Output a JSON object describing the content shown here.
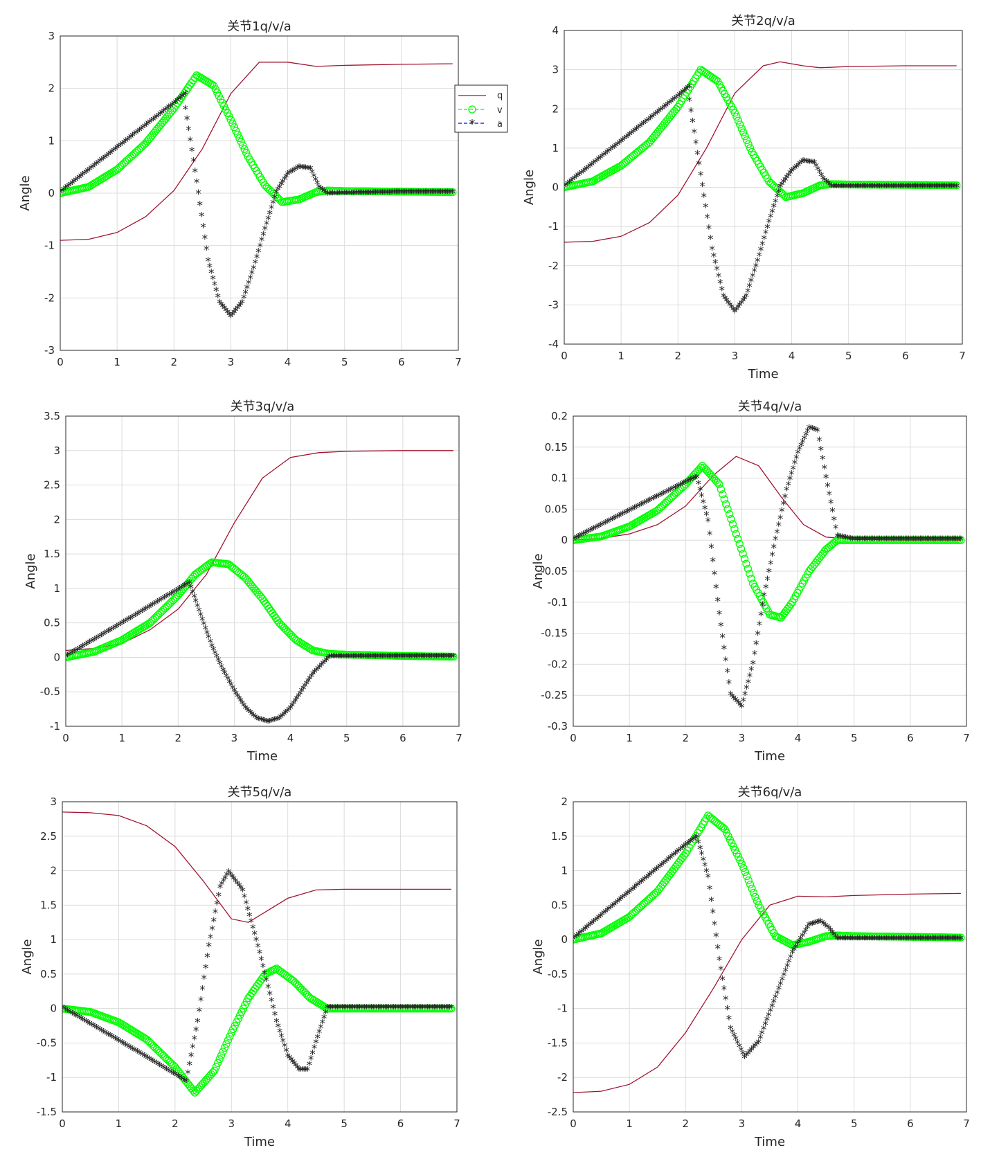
{
  "figure": {
    "colors": {
      "q": "#a2142f",
      "v": "#00ff00",
      "a": "#0000ff",
      "grid": "#dcdcdc",
      "axes": "#262626"
    },
    "legend": {
      "entries": [
        "q",
        "v",
        "a"
      ],
      "placement": "right-of-top-left-plot"
    }
  },
  "chart_data": [
    {
      "type": "line",
      "title": "关节1q/v/a",
      "xlabel": "",
      "ylabel": "Angle",
      "xlim": [
        0,
        7
      ],
      "ylim": [
        -3,
        3
      ],
      "xticks": [
        "0",
        "1",
        "2",
        "3",
        "4",
        "5",
        "6",
        "7"
      ],
      "yticks": [
        "-3",
        "-2",
        "-1",
        "0",
        "1",
        "2",
        "3"
      ],
      "grid": true,
      "legend": true,
      "series": [
        {
          "name": "q",
          "marker": "none",
          "x": [
            0,
            0.5,
            1,
            1.5,
            2,
            2.5,
            3,
            3.5,
            4,
            4.5,
            5,
            6,
            6.9
          ],
          "y": [
            -0.9,
            -0.88,
            -0.75,
            -0.45,
            0.05,
            0.85,
            1.9,
            2.5,
            2.5,
            2.42,
            2.44,
            2.46,
            2.47
          ]
        },
        {
          "name": "v",
          "marker": "o",
          "x": [
            0,
            0.5,
            1,
            1.5,
            2,
            2.4,
            2.7,
            3,
            3.3,
            3.6,
            3.9,
            4.2,
            4.5,
            4.7,
            5,
            6,
            6.9
          ],
          "y": [
            0,
            0.12,
            0.45,
            0.95,
            1.62,
            2.25,
            2.05,
            1.4,
            0.7,
            0.15,
            -0.17,
            -0.12,
            0.02,
            0.05,
            0.04,
            0.03,
            0.02
          ]
        },
        {
          "name": "a",
          "marker": "*",
          "x": [
            0,
            1,
            2,
            2.2,
            2.2,
            2.4,
            2.6,
            2.8,
            3,
            3.2,
            3.4,
            3.6,
            3.8,
            4,
            4.2,
            4.4,
            4.55,
            4.7,
            5,
            6,
            6.9
          ],
          "y": [
            0,
            0.85,
            1.7,
            1.88,
            1.6,
            0.2,
            -1.3,
            -2.1,
            -2.37,
            -2.1,
            -1.45,
            -0.7,
            0,
            0.35,
            0.48,
            0.45,
            0.1,
            -0.03,
            -0.02,
            0,
            0
          ]
        }
      ]
    },
    {
      "type": "line",
      "title": "关节2q/v/a",
      "xlabel": "Time",
      "ylabel": "Angle",
      "xlim": [
        0,
        7
      ],
      "ylim": [
        -4,
        4
      ],
      "xticks": [
        "0",
        "1",
        "2",
        "3",
        "4",
        "5",
        "6",
        "7"
      ],
      "yticks": [
        "-4",
        "-3",
        "-2",
        "-1",
        "0",
        "1",
        "2",
        "3",
        "4"
      ],
      "grid": true,
      "legend": false,
      "series": [
        {
          "name": "q",
          "marker": "none",
          "x": [
            0,
            0.5,
            1,
            1.5,
            2,
            2.5,
            3,
            3.5,
            3.8,
            4.2,
            4.5,
            5,
            6,
            6.9
          ],
          "y": [
            -1.4,
            -1.38,
            -1.25,
            -0.9,
            -0.2,
            1,
            2.4,
            3.1,
            3.2,
            3.1,
            3.05,
            3.08,
            3.1,
            3.1
          ]
        },
        {
          "name": "v",
          "marker": "o",
          "x": [
            0,
            0.5,
            1,
            1.5,
            2,
            2.4,
            2.7,
            3,
            3.3,
            3.6,
            3.9,
            4.2,
            4.5,
            4.7,
            5,
            6,
            6.9
          ],
          "y": [
            0,
            0.15,
            0.55,
            1.15,
            2.05,
            3,
            2.7,
            1.9,
            0.9,
            0.15,
            -0.25,
            -0.15,
            0.05,
            0.08,
            0.07,
            0.06,
            0.05
          ]
        },
        {
          "name": "a",
          "marker": "*",
          "x": [
            0,
            1,
            2,
            2.2,
            2.2,
            2.4,
            2.6,
            2.8,
            3,
            3.2,
            3.4,
            3.6,
            3.8,
            4,
            4.2,
            4.4,
            4.55,
            4.7,
            5,
            6,
            6.9
          ],
          "y": [
            0,
            1.15,
            2.3,
            2.55,
            2.2,
            0.3,
            -1.6,
            -2.8,
            -3.2,
            -2.8,
            -1.9,
            -0.9,
            0,
            0.4,
            0.65,
            0.6,
            0.2,
            0,
            0,
            0,
            0
          ]
        }
      ]
    },
    {
      "type": "line",
      "title": "关节3q/v/a",
      "xlabel": "Time",
      "ylabel": "Angle",
      "xlim": [
        0,
        7
      ],
      "ylim": [
        -1,
        3.5
      ],
      "xticks": [
        "0",
        "1",
        "2",
        "3",
        "4",
        "5",
        "6",
        "7"
      ],
      "yticks": [
        "-1",
        "-0.5",
        "0",
        "0.5",
        "1",
        "1.5",
        "2",
        "2.5",
        "3",
        "3.5"
      ],
      "grid": true,
      "legend": false,
      "series": [
        {
          "name": "q",
          "marker": "none",
          "x": [
            0,
            0.5,
            1,
            1.5,
            2,
            2.5,
            3,
            3.5,
            4,
            4.5,
            5,
            6,
            6.9
          ],
          "y": [
            0.1,
            0.13,
            0.2,
            0.4,
            0.7,
            1.2,
            1.95,
            2.6,
            2.9,
            2.97,
            2.99,
            3,
            3
          ]
        },
        {
          "name": "v",
          "marker": "o",
          "x": [
            0,
            0.5,
            1,
            1.5,
            2,
            2.3,
            2.6,
            2.9,
            3.2,
            3.5,
            3.8,
            4.1,
            4.4,
            4.7,
            5,
            6,
            6.9
          ],
          "y": [
            0,
            0.08,
            0.25,
            0.5,
            0.9,
            1.2,
            1.38,
            1.35,
            1.15,
            0.85,
            0.5,
            0.25,
            0.1,
            0.05,
            0.04,
            0.02,
            0.01
          ]
        },
        {
          "name": "a",
          "marker": "*",
          "x": [
            0,
            1,
            2,
            2.2,
            2.4,
            2.6,
            2.8,
            3,
            3.2,
            3.4,
            3.6,
            3.8,
            4,
            4.2,
            4.4,
            4.7,
            5,
            6,
            6.9
          ],
          "y": [
            0,
            0.48,
            0.97,
            1.07,
            0.6,
            0.15,
            -0.2,
            -0.5,
            -0.75,
            -0.9,
            -0.95,
            -0.9,
            -0.75,
            -0.5,
            -0.25,
            0,
            0,
            0,
            0
          ]
        }
      ]
    },
    {
      "type": "line",
      "title": "关节4q/v/a",
      "xlabel": "Time",
      "ylabel": "Angle",
      "xlim": [
        0,
        7
      ],
      "ylim": [
        -0.3,
        0.2
      ],
      "xticks": [
        "0",
        "1",
        "2",
        "3",
        "4",
        "5",
        "6",
        "7"
      ],
      "yticks": [
        "-0.3",
        "-0.25",
        "-0.2",
        "-0.15",
        "-0.1",
        "-0.05",
        "0",
        "0.05",
        "0.1",
        "0.15",
        "0.2"
      ],
      "grid": true,
      "legend": false,
      "series": [
        {
          "name": "q",
          "marker": "none",
          "x": [
            0,
            0.5,
            1,
            1.5,
            2,
            2.5,
            2.9,
            3.3,
            3.7,
            4.1,
            4.5,
            5,
            6,
            6.9
          ],
          "y": [
            0,
            0.003,
            0.01,
            0.025,
            0.055,
            0.105,
            0.135,
            0.12,
            0.07,
            0.025,
            0.005,
            0.001,
            0,
            0
          ]
        },
        {
          "name": "v",
          "marker": "o",
          "x": [
            0,
            0.5,
            1,
            1.5,
            2,
            2.3,
            2.6,
            2.9,
            3.2,
            3.5,
            3.7,
            3.9,
            4.2,
            4.5,
            4.7,
            5,
            6,
            6.9
          ],
          "y": [
            0,
            0.006,
            0.022,
            0.048,
            0.09,
            0.12,
            0.09,
            0.01,
            -0.07,
            -0.12,
            -0.125,
            -0.1,
            -0.05,
            -0.015,
            0,
            0,
            0,
            0
          ]
        },
        {
          "name": "a",
          "marker": "*",
          "x": [
            0,
            1,
            2,
            2.2,
            2.4,
            2.6,
            2.8,
            3,
            3.2,
            3.4,
            3.6,
            3.8,
            4,
            4.2,
            4.35,
            4.5,
            4.7,
            5,
            6,
            6.9
          ],
          "y": [
            0,
            0.046,
            0.092,
            0.1,
            0.03,
            -0.12,
            -0.25,
            -0.27,
            -0.2,
            -0.09,
            0,
            0.08,
            0.14,
            0.18,
            0.175,
            0.1,
            0.005,
            0,
            0,
            0
          ]
        }
      ]
    },
    {
      "type": "line",
      "title": "关节5q/v/a",
      "xlabel": "Time",
      "ylabel": "Angle",
      "xlim": [
        0,
        7
      ],
      "ylim": [
        -1.5,
        3
      ],
      "xticks": [
        "0",
        "1",
        "2",
        "3",
        "4",
        "5",
        "6",
        "7"
      ],
      "yticks": [
        "-1.5",
        "-1",
        "-0.5",
        "0",
        "0.5",
        "1",
        "1.5",
        "2",
        "2.5",
        "3"
      ],
      "grid": true,
      "legend": false,
      "series": [
        {
          "name": "q",
          "marker": "none",
          "x": [
            0,
            0.5,
            1,
            1.5,
            2,
            2.5,
            3,
            3.3,
            3.6,
            4,
            4.5,
            5,
            6,
            6.9
          ],
          "y": [
            2.85,
            2.84,
            2.8,
            2.65,
            2.35,
            1.85,
            1.3,
            1.25,
            1.4,
            1.6,
            1.72,
            1.73,
            1.73,
            1.73
          ]
        },
        {
          "name": "v",
          "marker": "o",
          "x": [
            0,
            0.5,
            1,
            1.5,
            2,
            2.35,
            2.7,
            3,
            3.3,
            3.6,
            3.8,
            4.1,
            4.4,
            4.7,
            5,
            6,
            6.9
          ],
          "y": [
            0,
            -0.05,
            -0.2,
            -0.45,
            -0.85,
            -1.22,
            -0.9,
            -0.35,
            0.15,
            0.5,
            0.58,
            0.4,
            0.15,
            0,
            0,
            0,
            0
          ]
        },
        {
          "name": "a",
          "marker": "*",
          "x": [
            0,
            1,
            2,
            2.2,
            2.4,
            2.6,
            2.8,
            2.95,
            3.2,
            3.5,
            3.8,
            4,
            4.2,
            4.35,
            4.5,
            4.7,
            5,
            6,
            6.9
          ],
          "y": [
            0,
            -0.48,
            -0.97,
            -1.07,
            -0.2,
            0.9,
            1.75,
            1.97,
            1.7,
            0.8,
            -0.2,
            -0.7,
            -0.9,
            -0.9,
            -0.5,
            0,
            0,
            0,
            0
          ]
        }
      ]
    },
    {
      "type": "line",
      "title": "关节6q/v/a",
      "xlabel": "Time",
      "ylabel": "Angle",
      "xlim": [
        0,
        7
      ],
      "ylim": [
        -2.5,
        2
      ],
      "xticks": [
        "0",
        "1",
        "2",
        "3",
        "4",
        "5",
        "6",
        "7"
      ],
      "yticks": [
        "-2.5",
        "-2",
        "-1.5",
        "-1",
        "-0.5",
        "0",
        "0.5",
        "1",
        "1.5",
        "2"
      ],
      "grid": true,
      "legend": false,
      "series": [
        {
          "name": "q",
          "marker": "none",
          "x": [
            0,
            0.5,
            1,
            1.5,
            2,
            2.5,
            3,
            3.5,
            4,
            4.5,
            5,
            6,
            6.9
          ],
          "y": [
            -2.22,
            -2.2,
            -2.1,
            -1.85,
            -1.35,
            -0.7,
            0,
            0.5,
            0.63,
            0.62,
            0.64,
            0.66,
            0.67
          ]
        },
        {
          "name": "v",
          "marker": "o",
          "x": [
            0,
            0.5,
            1,
            1.5,
            2,
            2.4,
            2.7,
            3,
            3.3,
            3.6,
            3.9,
            4.2,
            4.5,
            4.7,
            5,
            6,
            6.9
          ],
          "y": [
            0,
            0.09,
            0.33,
            0.7,
            1.25,
            1.8,
            1.6,
            1.1,
            0.5,
            0.05,
            -0.08,
            -0.03,
            0.05,
            0.06,
            0.05,
            0.04,
            0.03
          ]
        },
        {
          "name": "a",
          "marker": "*",
          "x": [
            0,
            1,
            2,
            2.2,
            2.4,
            2.6,
            2.8,
            3.05,
            3.3,
            3.6,
            3.9,
            4.2,
            4.4,
            4.55,
            4.7,
            5,
            6,
            6.9
          ],
          "y": [
            0,
            0.68,
            1.36,
            1.48,
            0.9,
            -0.3,
            -1.3,
            -1.72,
            -1.5,
            -0.85,
            -0.2,
            0.2,
            0.25,
            0.15,
            0,
            0,
            0,
            0
          ]
        }
      ]
    }
  ]
}
